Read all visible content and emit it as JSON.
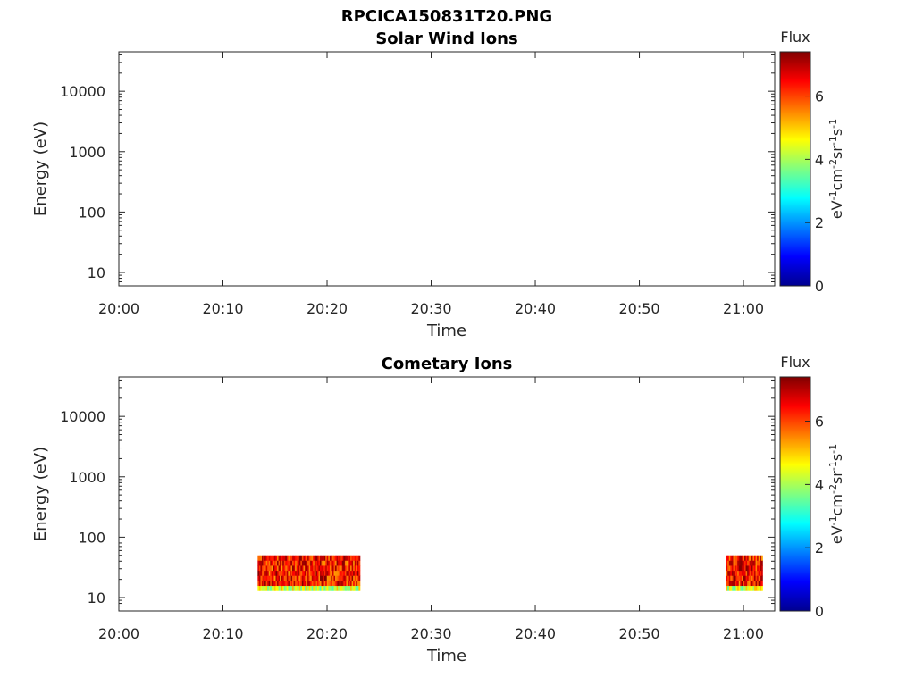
{
  "figure": {
    "title": "RPCICA150831T20.PNG"
  },
  "colormap": [
    "#00008f",
    "#0000ff",
    "#0080ff",
    "#00ffff",
    "#80ff80",
    "#ffff00",
    "#ff8000",
    "#ff0000",
    "#800000"
  ],
  "chart_data": [
    {
      "type": "heatmap",
      "title": "Solar Wind Ions",
      "xlabel": "Time",
      "ylabel": "Energy (eV)",
      "yscale": "log",
      "ylim": [
        6,
        45000
      ],
      "xlim": [
        "20:00",
        "21:03"
      ],
      "x_ticks": [
        "20:00",
        "20:10",
        "20:20",
        "20:30",
        "20:40",
        "20:50",
        "21:00"
      ],
      "y_ticks": [
        "10",
        "100",
        "1000",
        "10000"
      ],
      "colorbar": {
        "title": "Flux",
        "label": "eV-1cm-2sr-1s-1",
        "ticks": [
          "0",
          "2",
          "4",
          "6"
        ],
        "range": [
          0,
          7.4
        ]
      },
      "blocks": []
    },
    {
      "type": "heatmap",
      "title": "Cometary Ions",
      "xlabel": "Time",
      "ylabel": "Energy (eV)",
      "yscale": "log",
      "ylim": [
        6,
        45000
      ],
      "xlim": [
        "20:00",
        "21:03"
      ],
      "x_ticks": [
        "20:00",
        "20:10",
        "20:20",
        "20:30",
        "20:40",
        "20:50",
        "21:00"
      ],
      "y_ticks": [
        "10",
        "100",
        "1000",
        "10000"
      ],
      "colorbar": {
        "title": "Flux",
        "label": "eV-1cm-2sr-1s-1",
        "ticks": [
          "0",
          "2",
          "4",
          "6"
        ],
        "range": [
          0,
          7.4
        ]
      },
      "blocks": [
        {
          "start": "20:13:20",
          "end": "20:23:10",
          "energy_min": 13,
          "energy_max": 50,
          "flux_range": [
            3.5,
            7.2
          ]
        },
        {
          "start": "20:58:20",
          "end": "21:01:50",
          "energy_min": 13,
          "energy_max": 50,
          "flux_range": [
            3.5,
            7.2
          ]
        }
      ]
    }
  ]
}
